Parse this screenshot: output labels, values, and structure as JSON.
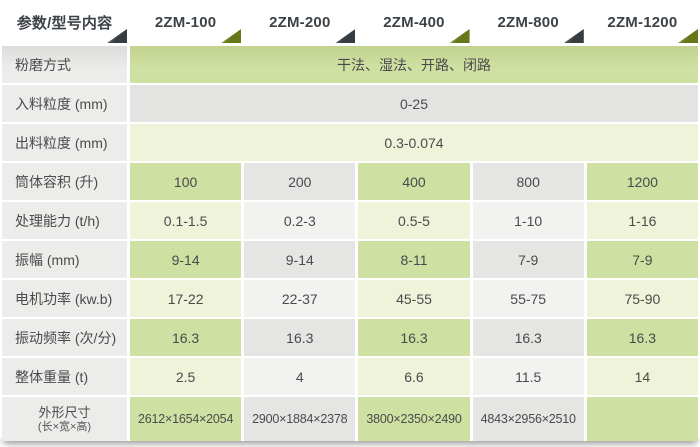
{
  "header": {
    "param_label": "参数/型号内容",
    "models": [
      "2ZM-100",
      "2ZM-200",
      "2ZM-400",
      "2ZM-800",
      "2ZM-1200"
    ]
  },
  "rows": {
    "span": [
      {
        "label": "粉磨方式",
        "value": "干法、湿法、开路、闭路"
      },
      {
        "label": "入料粒度 (mm)",
        "value": "0-25"
      },
      {
        "label": "出料粒度 (mm)",
        "value": "0.3-0.074"
      }
    ],
    "data": [
      {
        "label": "处理能力 (t/h)",
        "values": [
          "0.1-1.5",
          "0.2-3",
          "0.5-5",
          "1-10",
          "1-16"
        ]
      },
      {
        "label": "筒体容积 (升)",
        "values": [
          "100",
          "200",
          "400",
          "800",
          "1200"
        ]
      },
      {
        "label": "振幅 (mm)",
        "values": [
          "9-14",
          "9-14",
          "8-11",
          "7-9",
          "7-9"
        ]
      },
      {
        "label": "电机功率 (kw.b)",
        "values": [
          "17-22",
          "22-37",
          "45-55",
          "55-75",
          "75-90"
        ]
      },
      {
        "label": "振动频率 (次/分)",
        "values": [
          "16.3",
          "16.3",
          "16.3",
          "16.3",
          "16.3"
        ]
      },
      {
        "label": "整体重量 (t)",
        "values": [
          "2.5",
          "4",
          "6.6",
          "11.5",
          "14"
        ]
      },
      {
        "label": "外形尺寸",
        "label_sub": "(长×宽×高)",
        "values": [
          "2612×1654×2054",
          "2900×1884×2378",
          "3800×2350×2490",
          "4843×2956×2510",
          ""
        ]
      }
    ]
  },
  "colors": {
    "green_cell": "#cfe0a3",
    "pale_green_cell": "#eef3d9",
    "gray_cell": "#e5e5e3",
    "pale_gray_cell": "#f2f2f0",
    "label_cell": "#ececea",
    "triangle_green": "#66771a",
    "triangle_dark": "#363d42",
    "header_text": "#3d4247"
  }
}
